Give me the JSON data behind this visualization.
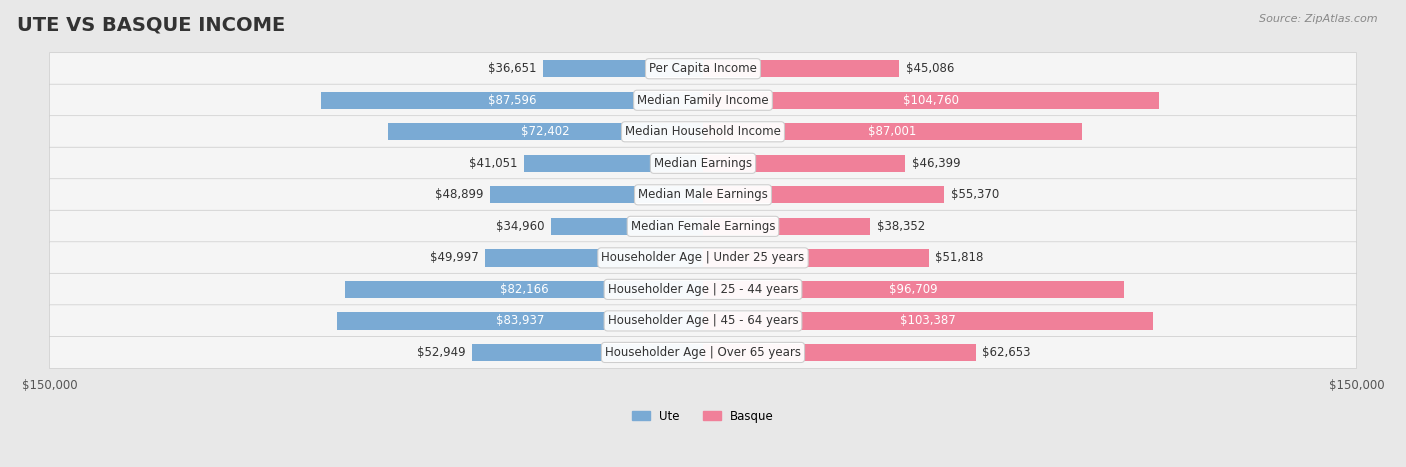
{
  "title": "UTE VS BASQUE INCOME",
  "source": "Source: ZipAtlas.com",
  "categories": [
    "Per Capita Income",
    "Median Family Income",
    "Median Household Income",
    "Median Earnings",
    "Median Male Earnings",
    "Median Female Earnings",
    "Householder Age | Under 25 years",
    "Householder Age | 25 - 44 years",
    "Householder Age | 45 - 64 years",
    "Householder Age | Over 65 years"
  ],
  "ute_values": [
    36651,
    87596,
    72402,
    41051,
    48899,
    34960,
    49997,
    82166,
    83937,
    52949
  ],
  "basque_values": [
    45086,
    104760,
    87001,
    46399,
    55370,
    38352,
    51818,
    96709,
    103387,
    62653
  ],
  "ute_labels": [
    "$36,651",
    "$87,596",
    "$72,402",
    "$41,051",
    "$48,899",
    "$34,960",
    "$49,997",
    "$82,166",
    "$83,937",
    "$52,949"
  ],
  "basque_labels": [
    "$45,086",
    "$104,760",
    "$87,001",
    "$46,399",
    "$55,370",
    "$38,352",
    "$51,818",
    "$96,709",
    "$103,387",
    "$62,653"
  ],
  "ute_color": "#7aaad4",
  "basque_color": "#f08099",
  "ute_color_dark": "#5b8fc4",
  "basque_color_dark": "#e8607a",
  "max_value": 150000,
  "bg_color": "#f0f0f0",
  "row_bg": "#f7f7f7",
  "bar_height": 0.55,
  "title_fontsize": 14,
  "label_fontsize": 8.5,
  "axis_label_fontsize": 8.5
}
